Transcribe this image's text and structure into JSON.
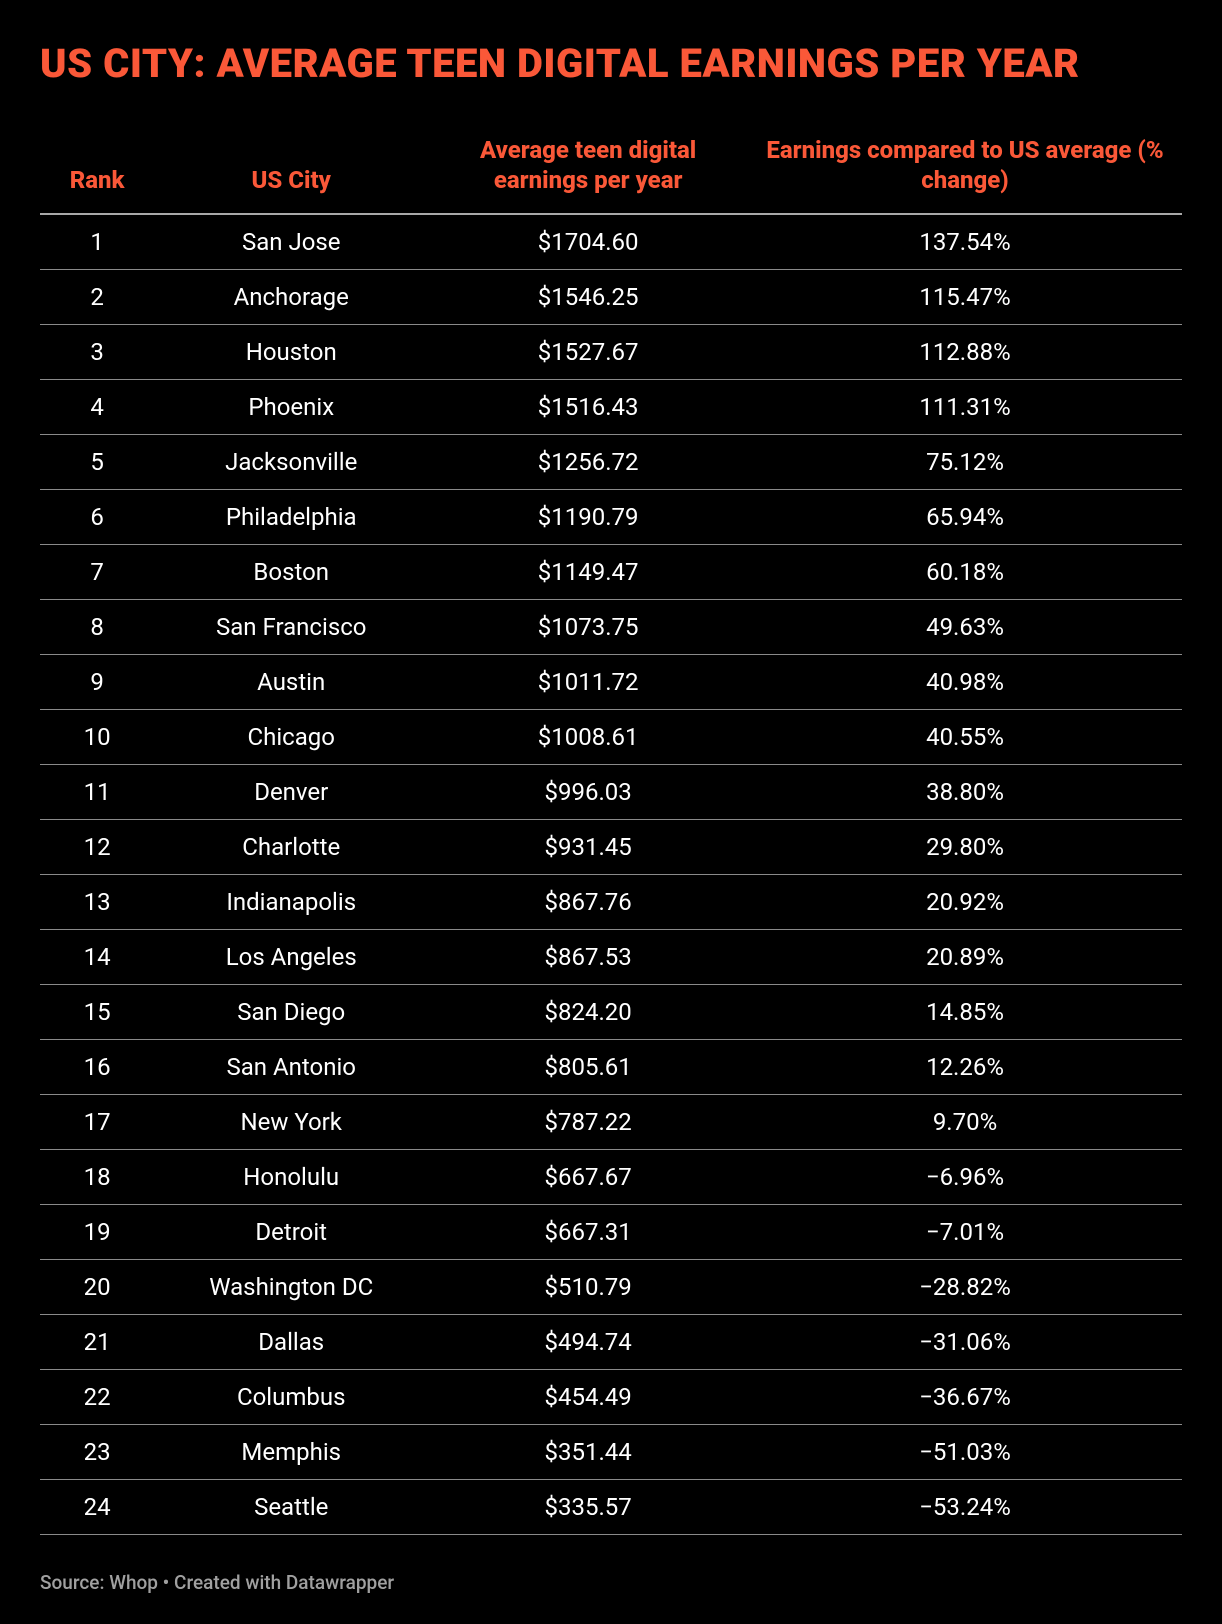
{
  "title": "US CITY: AVERAGE TEEN DIGITAL EARNINGS PER YEAR",
  "accent_color": "#fa5838",
  "background_color": "#000000",
  "text_color": "#ffffff",
  "footer_color": "#a0a0a0",
  "header_border_color": "#a8a8a8",
  "row_border_color": "#8a8a8a",
  "title_fontsize": 40,
  "header_fontsize": 24,
  "cell_fontsize": 24,
  "footer_fontsize": 19,
  "columns": [
    {
      "key": "rank",
      "label": "Rank",
      "width_pct": 10
    },
    {
      "key": "city",
      "label": "US City",
      "width_pct": 24
    },
    {
      "key": "earnings",
      "label": "Average teen digital earnings per year",
      "width_pct": 28
    },
    {
      "key": "change",
      "label": "Earnings compared to US average (% change)",
      "width_pct": 38
    }
  ],
  "rows": [
    {
      "rank": "1",
      "city": "San Jose",
      "earnings": "$1704.60",
      "change": "137.54%"
    },
    {
      "rank": "2",
      "city": "Anchorage",
      "earnings": "$1546.25",
      "change": "115.47%"
    },
    {
      "rank": "3",
      "city": "Houston",
      "earnings": "$1527.67",
      "change": "112.88%"
    },
    {
      "rank": "4",
      "city": "Phoenix",
      "earnings": "$1516.43",
      "change": "111.31%"
    },
    {
      "rank": "5",
      "city": "Jacksonville",
      "earnings": "$1256.72",
      "change": "75.12%"
    },
    {
      "rank": "6",
      "city": "Philadelphia",
      "earnings": "$1190.79",
      "change": "65.94%"
    },
    {
      "rank": "7",
      "city": "Boston",
      "earnings": "$1149.47",
      "change": "60.18%"
    },
    {
      "rank": "8",
      "city": "San Francisco",
      "earnings": "$1073.75",
      "change": "49.63%"
    },
    {
      "rank": "9",
      "city": "Austin",
      "earnings": "$1011.72",
      "change": "40.98%"
    },
    {
      "rank": "10",
      "city": "Chicago",
      "earnings": "$1008.61",
      "change": "40.55%"
    },
    {
      "rank": "11",
      "city": "Denver",
      "earnings": "$996.03",
      "change": "38.80%"
    },
    {
      "rank": "12",
      "city": "Charlotte",
      "earnings": "$931.45",
      "change": "29.80%"
    },
    {
      "rank": "13",
      "city": "Indianapolis",
      "earnings": "$867.76",
      "change": "20.92%"
    },
    {
      "rank": "14",
      "city": "Los Angeles",
      "earnings": "$867.53",
      "change": "20.89%"
    },
    {
      "rank": "15",
      "city": "San Diego",
      "earnings": "$824.20",
      "change": "14.85%"
    },
    {
      "rank": "16",
      "city": "San Antonio",
      "earnings": "$805.61",
      "change": "12.26%"
    },
    {
      "rank": "17",
      "city": "New York",
      "earnings": "$787.22",
      "change": "9.70%"
    },
    {
      "rank": "18",
      "city": "Honolulu",
      "earnings": "$667.67",
      "change": "−6.96%"
    },
    {
      "rank": "19",
      "city": "Detroit",
      "earnings": "$667.31",
      "change": "−7.01%"
    },
    {
      "rank": "20",
      "city": "Washington DC",
      "earnings": "$510.79",
      "change": "−28.82%"
    },
    {
      "rank": "21",
      "city": "Dallas",
      "earnings": "$494.74",
      "change": "−31.06%"
    },
    {
      "rank": "22",
      "city": "Columbus",
      "earnings": "$454.49",
      "change": "−36.67%"
    },
    {
      "rank": "23",
      "city": "Memphis",
      "earnings": "$351.44",
      "change": "−51.03%"
    },
    {
      "rank": "24",
      "city": "Seattle",
      "earnings": "$335.57",
      "change": "−53.24%"
    }
  ],
  "footer": "Source: Whop • Created with Datawrapper"
}
